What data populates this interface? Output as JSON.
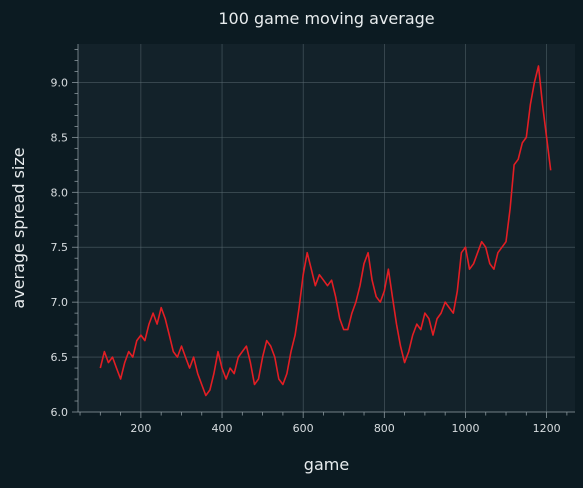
{
  "colors": {
    "background": "#0c1b22",
    "plot_background": "#13222a",
    "grid": "#5d6d74",
    "axis": "#8a979d",
    "text": "#e8ecee",
    "tick_text": "#d8dde0",
    "series": "#e31e24"
  },
  "chart_data": {
    "type": "line",
    "title": "100 game moving average",
    "xlabel": "game",
    "ylabel": "average spread size",
    "xlim": [
      45,
      1270
    ],
    "ylim": [
      6.0,
      9.35
    ],
    "xticks": [
      200,
      400,
      600,
      800,
      1000,
      1200
    ],
    "xtick_labels": [
      "200",
      "400",
      "600",
      "800",
      "1000",
      "1200"
    ],
    "yticks": [
      6.0,
      6.5,
      7.0,
      7.5,
      8.0,
      8.5,
      9.0
    ],
    "ytick_labels": [
      "6.0",
      "6.5",
      "7.0",
      "7.5",
      "8.0",
      "8.5",
      "9.0"
    ],
    "grid": true,
    "series": [
      {
        "color": "#e31e24",
        "x": [
          100,
          110,
          120,
          130,
          140,
          150,
          160,
          170,
          180,
          190,
          200,
          210,
          220,
          230,
          240,
          250,
          260,
          270,
          280,
          290,
          300,
          310,
          320,
          330,
          340,
          350,
          360,
          370,
          380,
          390,
          400,
          410,
          420,
          430,
          440,
          450,
          460,
          470,
          480,
          490,
          500,
          510,
          520,
          530,
          540,
          550,
          560,
          570,
          580,
          590,
          600,
          610,
          620,
          630,
          640,
          650,
          660,
          670,
          680,
          690,
          700,
          710,
          720,
          730,
          740,
          750,
          760,
          770,
          780,
          790,
          800,
          810,
          820,
          830,
          840,
          850,
          860,
          870,
          880,
          890,
          900,
          910,
          920,
          930,
          940,
          950,
          960,
          970,
          980,
          990,
          1000,
          1010,
          1020,
          1030,
          1040,
          1050,
          1060,
          1070,
          1080,
          1090,
          1100,
          1110,
          1120,
          1130,
          1140,
          1150,
          1160,
          1170,
          1180,
          1190,
          1200,
          1210
        ],
        "y": [
          6.4,
          6.55,
          6.45,
          6.5,
          6.4,
          6.3,
          6.45,
          6.55,
          6.5,
          6.65,
          6.7,
          6.65,
          6.8,
          6.9,
          6.8,
          6.95,
          6.85,
          6.7,
          6.55,
          6.5,
          6.6,
          6.5,
          6.4,
          6.5,
          6.35,
          6.25,
          6.15,
          6.2,
          6.35,
          6.55,
          6.4,
          6.3,
          6.4,
          6.35,
          6.5,
          6.55,
          6.6,
          6.45,
          6.25,
          6.3,
          6.5,
          6.65,
          6.6,
          6.5,
          6.3,
          6.25,
          6.35,
          6.55,
          6.7,
          6.95,
          7.25,
          7.45,
          7.3,
          7.15,
          7.25,
          7.2,
          7.15,
          7.2,
          7.05,
          6.85,
          6.75,
          6.75,
          6.9,
          7.0,
          7.15,
          7.35,
          7.45,
          7.2,
          7.05,
          7.0,
          7.1,
          7.3,
          7.05,
          6.8,
          6.6,
          6.45,
          6.55,
          6.7,
          6.8,
          6.75,
          6.9,
          6.85,
          6.7,
          6.85,
          6.9,
          7.0,
          6.95,
          6.9,
          7.1,
          7.45,
          7.5,
          7.3,
          7.35,
          7.45,
          7.55,
          7.5,
          7.35,
          7.3,
          7.45,
          7.5,
          7.55,
          7.85,
          8.25,
          8.3,
          8.45,
          8.5,
          8.8,
          9.0,
          9.15,
          8.8,
          8.5,
          8.2
        ]
      }
    ]
  }
}
